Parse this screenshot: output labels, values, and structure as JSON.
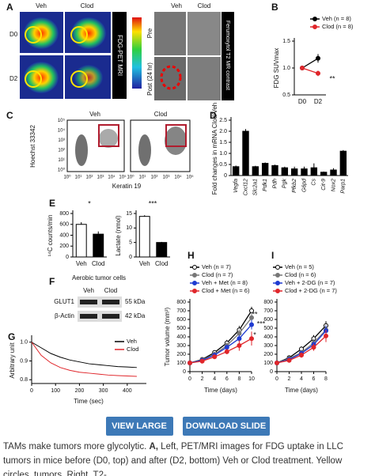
{
  "panel_a": {
    "label": "A",
    "pet_columns": [
      "Veh",
      "Clod"
    ],
    "pet_rows": [
      "D0",
      "D2"
    ],
    "pet_label": "FDG-PET MRI",
    "mr_columns": [
      "Veh",
      "Clod"
    ],
    "mr_rows": [
      "Pre",
      "Post (24 hr)"
    ],
    "mr_label": "Ferumoxytol T2 MR contrast"
  },
  "panel_c": {
    "label": "C",
    "columns": [
      "Veh",
      "Clod"
    ],
    "ylabel": "Hoechst 33342",
    "xlabel": "Keratin 19",
    "ticks": [
      "10⁰",
      "10¹",
      "10²",
      "10³",
      "10⁴",
      "10⁵"
    ]
  },
  "panel_f": {
    "label": "F",
    "title": "Aerobic tumor cells",
    "columns": [
      "Veh",
      "Clod"
    ],
    "rows": [
      {
        "name": "GLUT1",
        "size": "55 kDa"
      },
      {
        "name": "β-Actin",
        "size": "42 kDa"
      }
    ]
  },
  "chart_data": [
    {
      "type": "line",
      "label": "B",
      "ylabel": "FDG SUVmax",
      "categories": [
        "D0",
        "D2"
      ],
      "ylim": [
        0.5,
        1.5
      ],
      "yticks": [
        0.5,
        {
          "value": 1,
          "label": "1.0"
        },
        1.5
      ],
      "series": [
        {
          "name": "Veh (n = 8)",
          "color": "#000000",
          "values": [
            1.0,
            1.18
          ],
          "errors": [
            0.02,
            0.08
          ]
        },
        {
          "name": "Clod (n = 8)",
          "color": "#e0262b",
          "values": [
            1.0,
            0.9
          ],
          "errors": [
            0.02,
            0.05
          ]
        }
      ],
      "annotations": [
        "**"
      ]
    },
    {
      "type": "bar",
      "label": "D",
      "ylabel": "Fold changes in mRNA Clod/Veh",
      "categories": [
        "Vegfa",
        "Cxcl12",
        "Slc2a1",
        "Pdk1",
        "Pdh",
        "Pgk",
        "Pfkb2",
        "G6pd",
        "Cs",
        "Cit-9",
        "Nox2",
        "Parp1"
      ],
      "values": [
        0.4,
        2.0,
        0.4,
        0.55,
        0.45,
        0.35,
        0.3,
        0.3,
        0.35,
        0.15,
        0.25,
        1.1
      ],
      "errors": [
        0.05,
        0.1,
        0.04,
        0.04,
        0.04,
        0.05,
        0.1,
        0.1,
        0.2,
        0.03,
        0.08,
        0.05
      ],
      "colors": [
        "#000000"
      ],
      "ylim": [
        0,
        2.5
      ],
      "yticks": [
        0,
        0.5,
        {
          "value": 1,
          "label": "1.0"
        },
        1.5,
        {
          "value": 2,
          "label": "2.0"
        },
        2.5
      ]
    },
    {
      "type": "bar",
      "label": "E",
      "ylabel": "¹⁴C counts/min",
      "categories": [
        "Veh",
        "Clod"
      ],
      "values": [
        600,
        420
      ],
      "errors": [
        40,
        50
      ],
      "colors": [
        "#ffffff",
        "#000000"
      ],
      "ylim": [
        0,
        800
      ],
      "yticks": [
        0,
        200,
        400,
        600,
        800
      ],
      "annotations": [
        "*"
      ]
    },
    {
      "type": "bar",
      "ylabel": "Lactate (nmol)",
      "categories": [
        "Veh",
        "Clod"
      ],
      "values": [
        14,
        5
      ],
      "errors": [
        0.4,
        0.2
      ],
      "colors": [
        "#ffffff",
        "#000000"
      ],
      "ylim": [
        0,
        15
      ],
      "yticks": [
        0,
        5,
        10,
        15
      ],
      "annotations": [
        "***"
      ]
    },
    {
      "type": "line",
      "label": "G",
      "ylabel": "Arbitrary unit",
      "xlabel": "Time (sec)",
      "x": [
        0,
        40,
        80,
        120,
        160,
        200,
        240,
        280,
        320,
        360,
        400,
        440
      ],
      "xlim": [
        0,
        480
      ],
      "xticks": [
        0,
        100,
        200,
        300,
        400
      ],
      "ylim": [
        0.78,
        1.02
      ],
      "yticks": [
        0.8,
        0.9,
        {
          "value": 1,
          "label": "1.0"
        }
      ],
      "series": [
        {
          "name": "Veh",
          "color": "#000000",
          "values": [
            1.0,
            0.97,
            0.94,
            0.92,
            0.905,
            0.895,
            0.885,
            0.88,
            0.875,
            0.87,
            0.868,
            0.865
          ]
        },
        {
          "name": "Clod",
          "color": "#e0262b",
          "values": [
            1.0,
            0.93,
            0.89,
            0.865,
            0.85,
            0.84,
            0.835,
            0.83,
            0.825,
            0.822,
            0.82,
            0.818
          ]
        }
      ]
    },
    {
      "type": "line",
      "label": "H",
      "ylabel": "Tumor volume (mm³)",
      "xlabel": "Time (days)",
      "x": [
        0,
        2,
        4,
        6,
        8,
        10
      ],
      "xlim": [
        0,
        10
      ],
      "xticks": [
        0,
        2,
        4,
        6,
        8,
        10
      ],
      "ylim": [
        0,
        800
      ],
      "yticks": [
        0,
        100,
        200,
        300,
        400,
        500,
        600,
        700,
        800
      ],
      "series": [
        {
          "name": "Veh (n = 7)",
          "color": "#000000",
          "hollow": true,
          "values": [
            100,
            140,
            220,
            330,
            480,
            700
          ],
          "errors": [
            5,
            15,
            25,
            35,
            45,
            45
          ]
        },
        {
          "name": "Clod (n = 7)",
          "color": "#777777",
          "values": [
            100,
            135,
            200,
            300,
            440,
            620
          ],
          "errors": [
            5,
            15,
            25,
            35,
            45,
            60
          ]
        },
        {
          "name": "Veh + Met (n = 8)",
          "color": "#1f3bd1",
          "values": [
            100,
            130,
            190,
            280,
            380,
            540
          ],
          "errors": [
            5,
            15,
            20,
            30,
            40,
            55
          ]
        },
        {
          "name": "Clod + Met (n = 6)",
          "color": "#e0262b",
          "values": [
            100,
            120,
            170,
            230,
            300,
            380
          ],
          "errors": [
            5,
            15,
            20,
            30,
            60,
            80
          ]
        }
      ],
      "annotations": [
        "**",
        "***",
        "*"
      ]
    },
    {
      "type": "line",
      "label": "I",
      "x": [
        0,
        2,
        4,
        6,
        8
      ],
      "xlim": [
        0,
        8
      ],
      "xticks": [
        0,
        2,
        4,
        6,
        8
      ],
      "ylim": [
        0,
        800
      ],
      "yticks": [
        0,
        100,
        200,
        300,
        400,
        500,
        600,
        700,
        800
      ],
      "xlabel": "Time (days)",
      "series": [
        {
          "name": "Veh (n = 5)",
          "color": "#000000",
          "hollow": true,
          "values": [
            100,
            160,
            260,
            380,
            530
          ],
          "errors": [
            5,
            20,
            30,
            40,
            50
          ]
        },
        {
          "name": "Clod (n = 6)",
          "color": "#777777",
          "values": [
            100,
            150,
            220,
            330,
            480
          ],
          "errors": [
            5,
            20,
            30,
            45,
            60
          ]
        },
        {
          "name": "Veh + 2-DG (n = 7)",
          "color": "#1f3bd1",
          "values": [
            100,
            140,
            210,
            310,
            470
          ],
          "errors": [
            5,
            20,
            30,
            40,
            60
          ]
        },
        {
          "name": "Clod + 2-DG (n = 7)",
          "color": "#e0262b",
          "values": [
            100,
            130,
            190,
            280,
            410
          ],
          "errors": [
            5,
            20,
            30,
            40,
            70
          ]
        }
      ]
    }
  ],
  "buttons": [
    "VIEW LARGE",
    "DOWNLOAD SLIDE"
  ],
  "caption": {
    "lead": "TAMs make tumors more glycolytic.",
    "panel": "A,",
    "text": "Left, PET/MRI images for FDG uptake in LLC tumors in mice before (D0, top) and after (D2, bottom) Veh or Clod treatment. Yellow circles, tumors. Right, T2-"
  }
}
